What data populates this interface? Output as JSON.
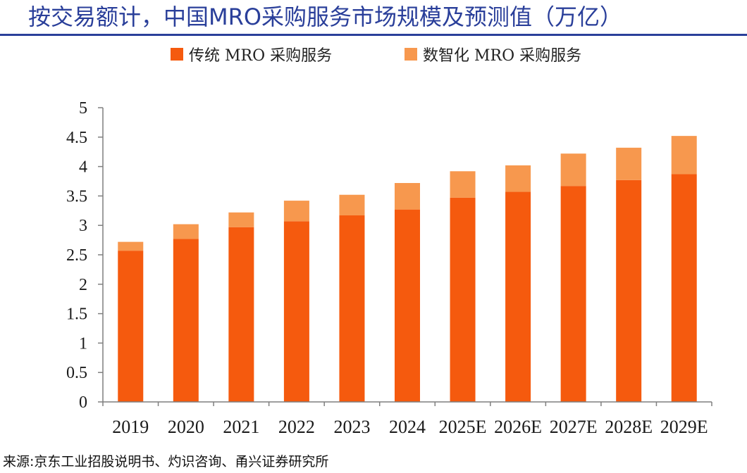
{
  "header": {
    "title": "按交易额计，中国MRO采购服务市场规模及预测值（万亿）"
  },
  "chart_data": {
    "type": "bar",
    "stacked": true,
    "title": "",
    "xlabel": "",
    "ylabel": "",
    "ylim": [
      0,
      5
    ],
    "yticks": [
      "0",
      "0.5",
      "1",
      "1.5",
      "2",
      "2.5",
      "3",
      "3.5",
      "4",
      "4.5",
      "5"
    ],
    "grid": false,
    "legend_position": "top-center",
    "categories": [
      "2019",
      "2020",
      "2021",
      "2022",
      "2023",
      "2024",
      "2025E",
      "2026E",
      "2027E",
      "2028E",
      "2029E"
    ],
    "series": [
      {
        "name": "传统 MRO 采购服务",
        "color": "#f55a0e",
        "values": [
          2.57,
          2.77,
          2.97,
          3.07,
          3.17,
          3.27,
          3.47,
          3.57,
          3.67,
          3.77,
          3.87
        ]
      },
      {
        "name": "数智化 MRO 采购服务",
        "color": "#f7984e",
        "values": [
          0.15,
          0.25,
          0.25,
          0.35,
          0.35,
          0.45,
          0.45,
          0.45,
          0.55,
          0.55,
          0.65
        ]
      }
    ]
  },
  "footer": {
    "source": "来源:京东工业招股说明书、灼识咨询、甬兴证券研究所"
  }
}
